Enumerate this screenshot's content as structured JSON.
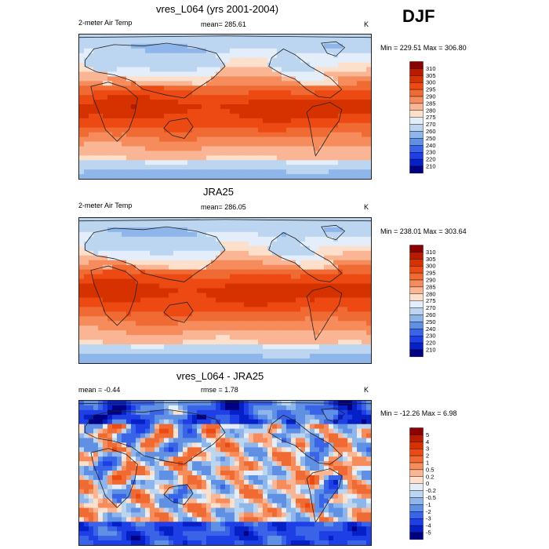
{
  "season": "DJF",
  "chart_data": [
    {
      "type": "heatmap",
      "title": "vres_L064 (yrs 2001-2004)",
      "left_label": "2-meter Air Temp",
      "center_label": "mean= 285.61",
      "units": "K",
      "minmax_label": "Min = 229.51 Max = 306.80",
      "min": 229.51,
      "max": 306.8,
      "mean": 285.61,
      "colorbar_levels": [
        "310",
        "305",
        "300",
        "295",
        "290",
        "285",
        "280",
        "275",
        "270",
        "260",
        "250",
        "240",
        "230",
        "220",
        "210"
      ],
      "colors": [
        "#8b0000",
        "#b71c00",
        "#d63200",
        "#ec4a12",
        "#f06a33",
        "#f68b5c",
        "#fab595",
        "#fde0cc",
        "#e4eefa",
        "#bcd6f2",
        "#8fb6ea",
        "#5f90e4",
        "#3a64e8",
        "#1e3fe6",
        "#0620c8",
        "#000082"
      ]
    },
    {
      "type": "heatmap",
      "title": "JRA25",
      "left_label": "2-meter Air Temp",
      "center_label": "mean= 286.05",
      "units": "K",
      "minmax_label": "Min = 238.01 Max = 303.64",
      "min": 238.01,
      "max": 303.64,
      "mean": 286.05,
      "colorbar_levels": [
        "310",
        "305",
        "300",
        "295",
        "290",
        "285",
        "280",
        "275",
        "270",
        "260",
        "250",
        "240",
        "230",
        "220",
        "210"
      ],
      "colors": [
        "#8b0000",
        "#b71c00",
        "#d63200",
        "#ec4a12",
        "#f06a33",
        "#f68b5c",
        "#fab595",
        "#fde0cc",
        "#e4eefa",
        "#bcd6f2",
        "#8fb6ea",
        "#5f90e4",
        "#3a64e8",
        "#1e3fe6",
        "#0620c8",
        "#000082"
      ]
    },
    {
      "type": "heatmap",
      "title": "vres_L064 - JRA25",
      "left_label": "mean =  -0.44",
      "center_label": "rmse =   1.78",
      "units": "K",
      "minmax_label": "Min = -12.26 Max =   6.98",
      "min": -12.26,
      "max": 6.98,
      "mean": -0.44,
      "rmse": 1.78,
      "colorbar_levels": [
        "5",
        "4",
        "3",
        "2",
        "1",
        "0.5",
        "0.2",
        "0",
        "-0.2",
        "-0.5",
        "-1",
        "-2",
        "-3",
        "-4",
        "-5"
      ],
      "colors": [
        "#8b0000",
        "#b71c00",
        "#d63200",
        "#ec4a12",
        "#f06a33",
        "#f68b5c",
        "#fab595",
        "#fde0cc",
        "#e4eefa",
        "#bcd6f2",
        "#8fb6ea",
        "#5f90e4",
        "#3a64e8",
        "#1e3fe6",
        "#0620c8",
        "#000082"
      ]
    }
  ]
}
